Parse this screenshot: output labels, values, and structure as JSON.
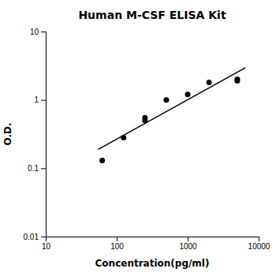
{
  "chart_data": {
    "type": "scatter",
    "title": "Human M-CSF ELISA Kit",
    "xlabel": "Concentration(pg/ml)",
    "ylabel": "O.D.",
    "log": true,
    "grid": false,
    "xlim": [
      10,
      10000
    ],
    "ylim": [
      0.01,
      10
    ],
    "xticks": [
      10,
      100,
      1000,
      10000
    ],
    "yticks": [
      0.01,
      0.1,
      1,
      10
    ],
    "series": [
      {
        "type": "scatter",
        "color": "#000000",
        "x": [
          62.5,
          125,
          250,
          250,
          500,
          1000,
          2000,
          5000,
          5000
        ],
        "values": [
          0.13,
          0.28,
          0.5,
          0.55,
          1.0,
          1.2,
          1.8,
          2.0,
          1.9
        ]
      },
      {
        "type": "line",
        "color": "#000000",
        "x": [
          55,
          6500
        ],
        "values": [
          0.18897,
          2.9514
        ]
      }
    ]
  }
}
